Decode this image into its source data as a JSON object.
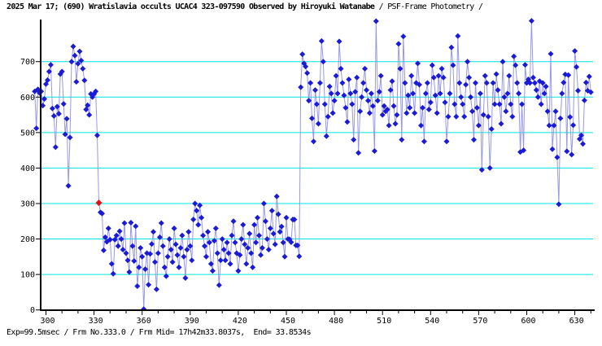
{
  "header": {
    "title_bold": "2025 Mar 17; (690) Wratislavia occults UCAC4 323-097590 Observed by Hiroyuki Watanabe",
    "title_regular": " / PSF-Frame Photometry /"
  },
  "status_bar": {
    "text": "Exp=99.5msec / Frm No.333.0 / Frm Mid= 17h42m33.8037s,  End= 33.8534s"
  },
  "chart_data": {
    "type": "line",
    "title": "2025 Mar 17; (690) Wratislavia occults UCAC4 323-097590 Observed by Hiroyuki Watanabe / PSF-Frame Photometry /",
    "xlabel": "",
    "ylabel": "",
    "grid": true,
    "legend": false,
    "x_axis": {
      "ticks": [
        300,
        330,
        360,
        390,
        420,
        450,
        480,
        510,
        540,
        570,
        600,
        630
      ],
      "minor_tick_step": 10,
      "range": [
        293,
        642
      ]
    },
    "y_axis": {
      "ticks": [
        0,
        100,
        200,
        300,
        400,
        500,
        600,
        700
      ],
      "gridlines": [
        100,
        200,
        300,
        400,
        500,
        600,
        700
      ],
      "range": [
        0,
        820
      ]
    },
    "colors": {
      "marker": "#1a1ad9",
      "line": "#9898e6",
      "grid": "#00e4e4",
      "axis": "#000000",
      "highlight": "#de1212",
      "background": "#ffffff"
    },
    "highlight_point": {
      "frame": 333,
      "value": 302,
      "note": "current frame marker (Frm No.333.0)"
    },
    "series": [
      {
        "name": "PSF-Frame photometry intensity",
        "frame_start": 293,
        "frame_step": 1,
        "values": [
          616,
          512,
          622,
          612,
          616,
          576,
          595,
          637,
          648,
          672,
          691,
          568,
          547,
          459,
          573,
          553,
          665,
          672,
          581,
          495,
          539,
          350,
          486,
          700,
          743,
          717,
          643,
          694,
          729,
          703,
          680,
          647,
          565,
          577,
          550,
          609,
          600,
          609,
          616,
          492,
          302,
          275,
          272,
          168,
          205,
          192,
          230,
          198,
          130,
          102,
          198,
          210,
          180,
          222,
          200,
          170,
          245,
          160,
          140,
          107,
          246,
          180,
          138,
          236,
          67,
          120,
          175,
          150,
          2,
          115,
          160,
          71,
          158,
          186,
          220,
          135,
          58,
          160,
          205,
          245,
          180,
          120,
          95,
          150,
          200,
          170,
          135,
          230,
          185,
          155,
          120,
          175,
          210,
          150,
          90,
          170,
          220,
          180,
          140,
          255,
          300,
          280,
          240,
          295,
          260,
          210,
          180,
          150,
          220,
          190,
          130,
          110,
          195,
          230,
          160,
          70,
          140,
          200,
          170,
          140,
          190,
          160,
          130,
          210,
          250,
          190,
          160,
          110,
          155,
          200,
          240,
          185,
          130,
          175,
          215,
          160,
          120,
          240,
          190,
          260,
          210,
          155,
          175,
          300,
          250,
          200,
          170,
          230,
          280,
          215,
          185,
          320,
          270,
          220,
          235,
          190,
          150,
          260,
          200,
          199,
          191,
          255,
          255,
          182,
          182,
          151,
          628,
          721,
          695,
          686,
          668,
          590,
          640,
          540,
          475,
          620,
          580,
          525,
          640,
          758,
          700,
          580,
          490,
          545,
          630,
          610,
          555,
          590,
          660,
          610,
          757,
          680,
          640,
          605,
          570,
          530,
          650,
          610,
          580,
          480,
          615,
          655,
          443,
          560,
          600,
          640,
          680,
          620,
          590,
          555,
          610,
          575,
          448,
          814,
          590,
          615,
          660,
          550,
          575,
          560,
          565,
          520,
          620,
          645,
          575,
          525,
          550,
          750,
          680,
          480,
          771,
          640,
          555,
          605,
          570,
          660,
          610,
          555,
          640,
          695,
          635,
          520,
          570,
          475,
          610,
          640,
          565,
          585,
          690,
          655,
          605,
          555,
          660,
          610,
          680,
          655,
          585,
          475,
          545,
          610,
          740,
          690,
          580,
          545,
          772,
          640,
          600,
          580,
          545,
          635,
          700,
          655,
          600,
          560,
          480,
          640,
          570,
          520,
          610,
          395,
          550,
          660,
          640,
          545,
          400,
          510,
          640,
          580,
          665,
          620,
          580,
          525,
          700,
          600,
          560,
          610,
          660,
          580,
          545,
          715,
          690,
          640,
          610,
          445,
          580,
          450,
          691,
          640,
          650,
          640,
          815,
          655,
          640,
          620,
          600,
          645,
          580,
          640,
          610,
          630,
          560,
          520,
          722,
          453,
          520,
          560,
          430,
          298,
          540,
          610,
          641,
          664,
          447,
          662,
          544,
          438,
          521,
          730,
          685,
          618,
          482,
          492,
          468,
          591,
          641,
          618,
          658,
          614
        ]
      }
    ]
  }
}
